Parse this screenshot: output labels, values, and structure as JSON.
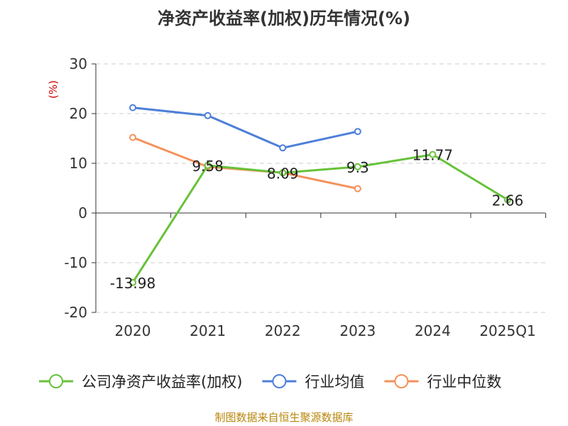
{
  "chart_data": {
    "type": "line",
    "title": "净资产收益率(加权)历年情况(%)",
    "ylabel": "(%)",
    "xlabel": "",
    "categories": [
      "2020",
      "2021",
      "2022",
      "2023",
      "2024",
      "2025Q1"
    ],
    "yticks": [
      -20,
      -10,
      0,
      10,
      20,
      30
    ],
    "ylim": [
      -20,
      30
    ],
    "grid": true,
    "legend_position": "bottom",
    "series": [
      {
        "name": "公司净资产收益率(加权)",
        "color": "#67c23a",
        "values": [
          -13.98,
          9.58,
          8.09,
          9.3,
          11.77,
          2.66
        ],
        "labels": [
          "-13.98",
          "9.58",
          "8.09",
          "9.3",
          "11.77",
          "2.66"
        ]
      },
      {
        "name": "行业均值",
        "color": "#4e7fd9",
        "values": [
          21.2,
          19.6,
          13.1,
          16.4,
          null,
          null
        ]
      },
      {
        "name": "行业中位数",
        "color": "#f5915a",
        "values": [
          15.2,
          9.3,
          8.1,
          4.9,
          null,
          null
        ]
      }
    ]
  },
  "footer": {
    "source": "制图数据来自恒生聚源数据库"
  }
}
